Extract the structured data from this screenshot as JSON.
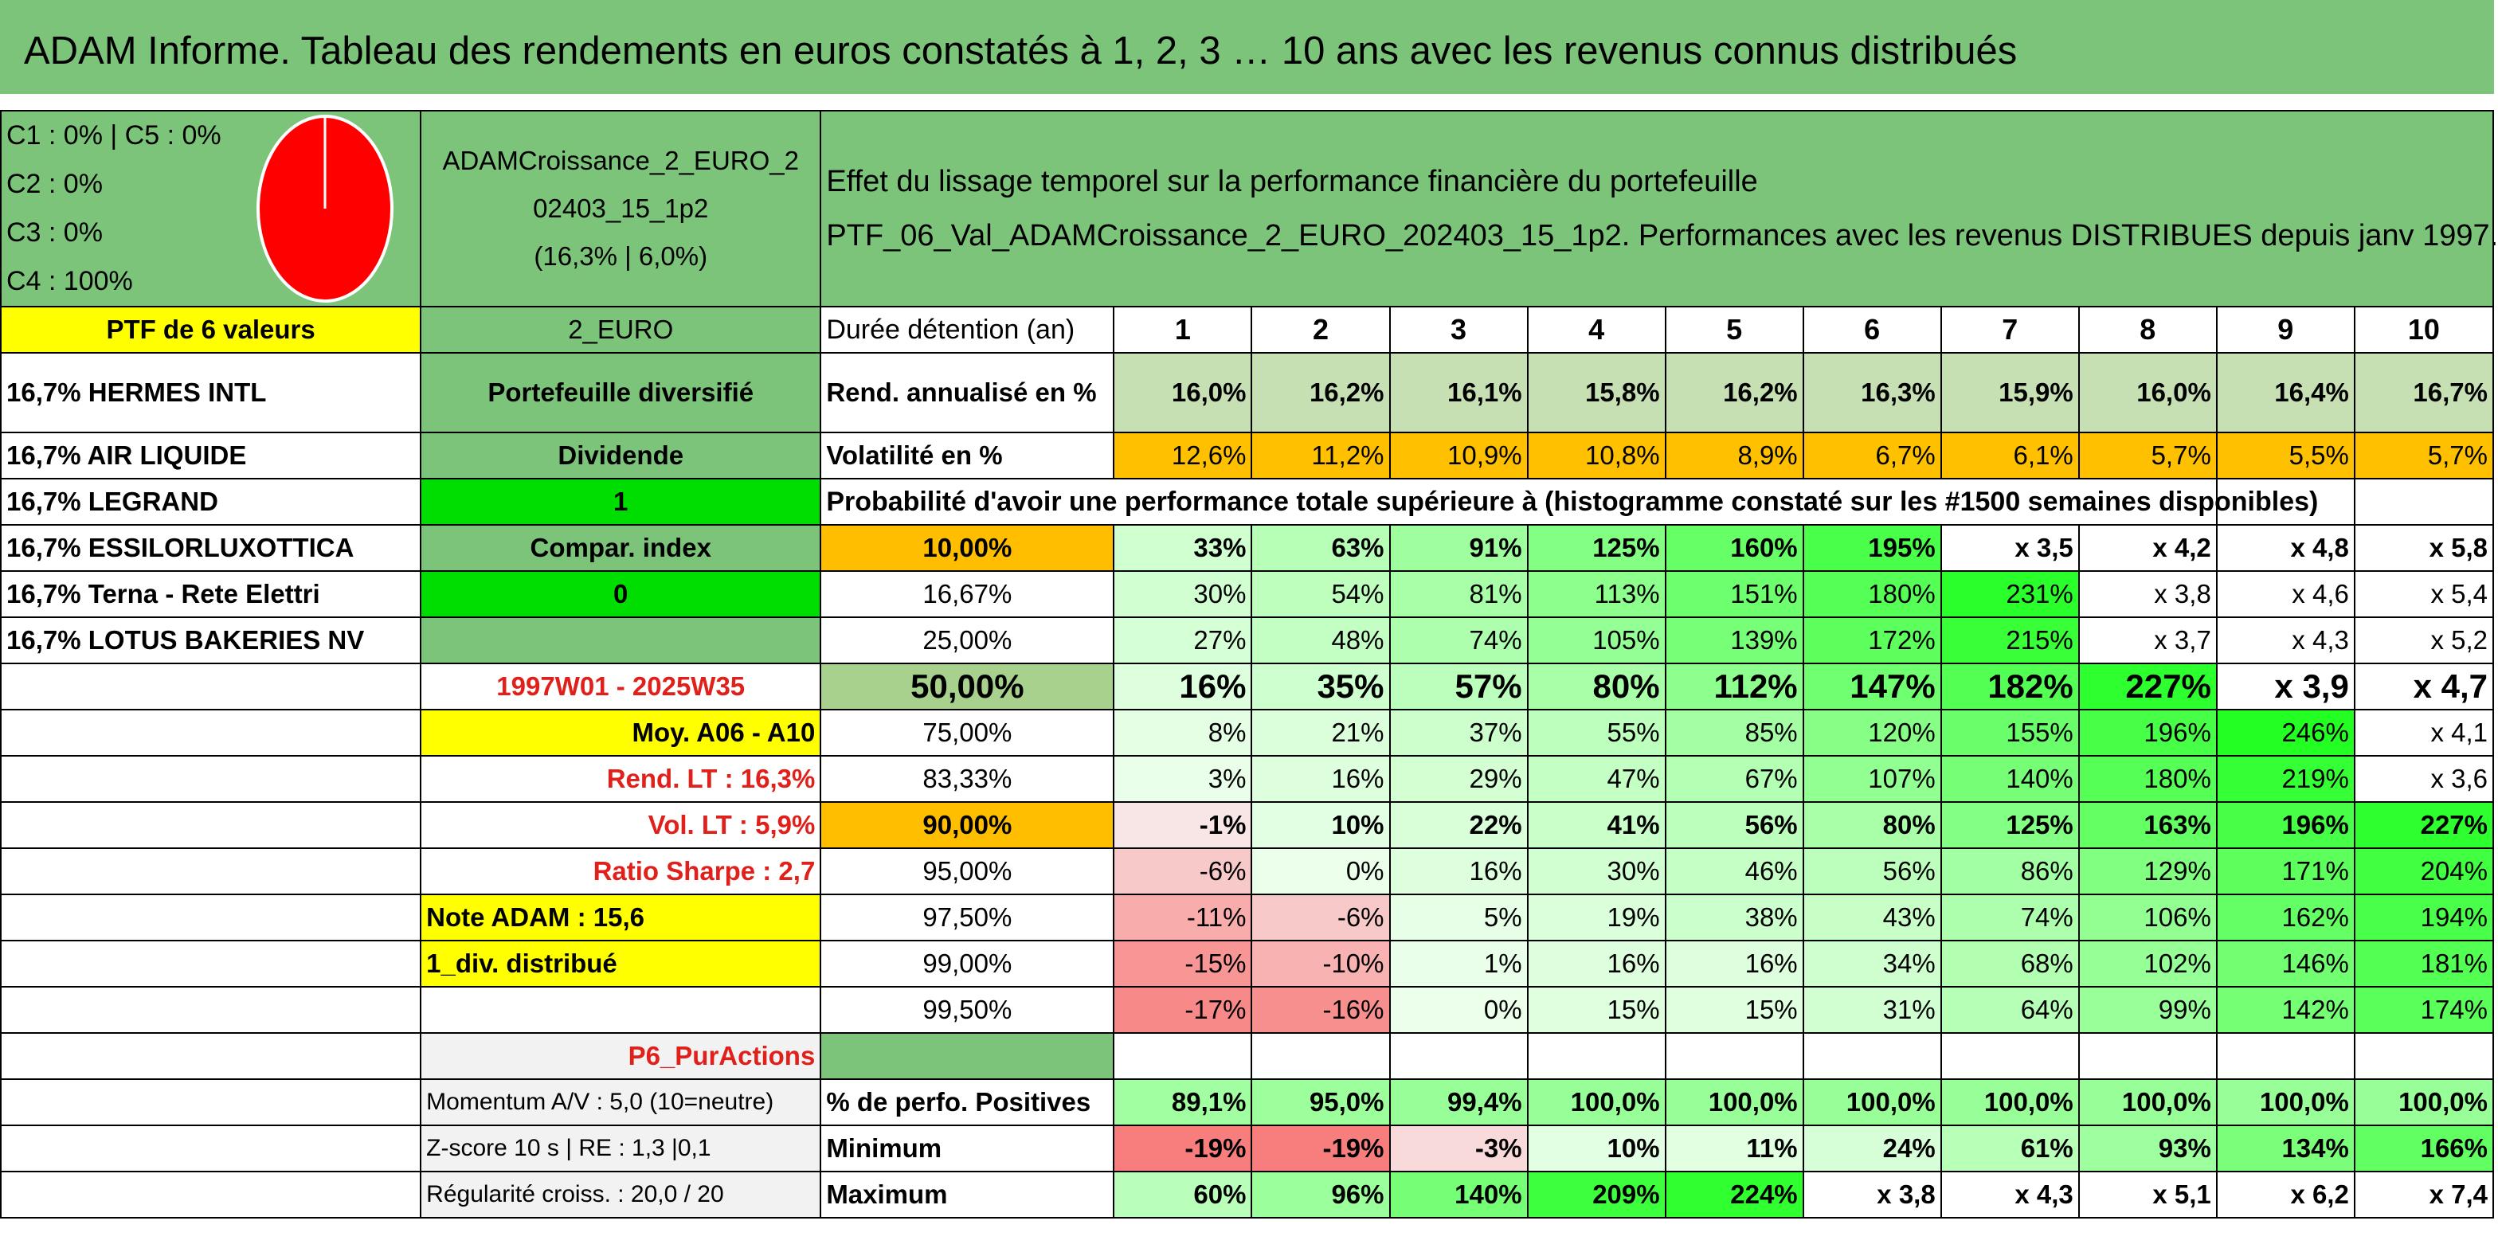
{
  "title": "ADAM Informe. Tableau des rendements en euros constatés à 1, 2, 3 … 10 ans avec les revenus connus distribués",
  "classes": [
    "C1 : 0% | C5 : 0%",
    "C2 : 0%",
    "C3 : 0%",
    "C4 : 100%"
  ],
  "fund": [
    "ADAMCroissance_2_EURO_2",
    "02403_15_1p2",
    "(16,3% | 6,0%)"
  ],
  "effect": [
    "Effet du lissage temporel sur la performance financière du portefeuille",
    "PTF_06_Val_ADAMCroissance_2_EURO_202403_15_1p2. Performances avec les revenus DISTRIBUES depuis janv 1997."
  ],
  "ptf_label": "PTF de 6 valeurs",
  "currency": "2_EURO",
  "holdings": [
    "16,7% HERMES INTL",
    "16,7% AIR LIQUIDE",
    "16,7% LEGRAND",
    "16,7% ESSILORLUXOTTICA",
    "16,7% Terna - Rete Elettri",
    "16,7% LOTUS BAKERIES NV"
  ],
  "side": [
    "Portefeuille diversifié",
    "Dividende",
    "1",
    "Compar. index",
    "0"
  ],
  "period": "1997W01 - 2025W35",
  "moy": "Moy. A06 - A10",
  "rend_lt": "Rend. LT : 16,3%",
  "vol_lt": "Vol. LT : 5,9%",
  "sharpe": "Ratio Sharpe : 2,7",
  "note": "Note ADAM : 15,6",
  "div": "1_div. distribué",
  "p6": "P6_PurActions",
  "momentum": "Momentum A/V : 5,0 (10=neutre)",
  "zscore": "Z-score 10 s | RE : 1,3 |0,1",
  "regularite": "Régularité croiss. : 20,0 / 20",
  "years_label": "Durée détention (an)",
  "years": [
    "1",
    "2",
    "3",
    "4",
    "5",
    "6",
    "7",
    "8",
    "9",
    "10"
  ],
  "rend_label": "Rend. annualisé en %",
  "rend": [
    "16,0%",
    "16,2%",
    "16,1%",
    "15,8%",
    "16,2%",
    "16,3%",
    "15,9%",
    "16,0%",
    "16,4%",
    "16,7%"
  ],
  "vol_label": "Volatilité en %",
  "vol": [
    "12,6%",
    "11,2%",
    "10,9%",
    "10,8%",
    "8,9%",
    "6,7%",
    "6,1%",
    "5,7%",
    "5,5%",
    "5,7%"
  ],
  "prob_label": "Probabilité d'avoir une performance totale supérieure à (histogramme constaté sur les #1500 semaines disponibles)",
  "pct_rows": [
    {
      "p": "10,00%",
      "v": [
        "33%",
        "63%",
        "91%",
        "125%",
        "160%",
        "195%",
        "x 3,5",
        "x 4,2",
        "x 4,8",
        "x 5,8"
      ]
    },
    {
      "p": "16,67%",
      "v": [
        "30%",
        "54%",
        "81%",
        "113%",
        "151%",
        "180%",
        "231%",
        "x 3,8",
        "x 4,6",
        "x 5,4"
      ]
    },
    {
      "p": "25,00%",
      "v": [
        "27%",
        "48%",
        "74%",
        "105%",
        "139%",
        "172%",
        "215%",
        "x 3,7",
        "x 4,3",
        "x 5,2"
      ]
    },
    {
      "p": "50,00%",
      "v": [
        "16%",
        "35%",
        "57%",
        "80%",
        "112%",
        "147%",
        "182%",
        "227%",
        "x 3,9",
        "x 4,7"
      ]
    },
    {
      "p": "75,00%",
      "v": [
        "8%",
        "21%",
        "37%",
        "55%",
        "85%",
        "120%",
        "155%",
        "196%",
        "246%",
        "x 4,1"
      ]
    },
    {
      "p": "83,33%",
      "v": [
        "3%",
        "16%",
        "29%",
        "47%",
        "67%",
        "107%",
        "140%",
        "180%",
        "219%",
        "x 3,6"
      ]
    },
    {
      "p": "90,00%",
      "v": [
        "-1%",
        "10%",
        "22%",
        "41%",
        "56%",
        "80%",
        "125%",
        "163%",
        "196%",
        "227%"
      ]
    },
    {
      "p": "95,00%",
      "v": [
        "-6%",
        "0%",
        "16%",
        "30%",
        "46%",
        "56%",
        "86%",
        "129%",
        "171%",
        "204%"
      ]
    },
    {
      "p": "97,50%",
      "v": [
        "-11%",
        "-6%",
        "5%",
        "19%",
        "38%",
        "43%",
        "74%",
        "106%",
        "162%",
        "194%"
      ]
    },
    {
      "p": "99,00%",
      "v": [
        "-15%",
        "-10%",
        "1%",
        "16%",
        "16%",
        "34%",
        "68%",
        "102%",
        "146%",
        "181%"
      ]
    },
    {
      "p": "99,50%",
      "v": [
        "-17%",
        "-16%",
        "0%",
        "15%",
        "15%",
        "31%",
        "64%",
        "99%",
        "142%",
        "174%"
      ]
    }
  ],
  "pos_label": "% de perfo. Positives",
  "pos": [
    "89,1%",
    "95,0%",
    "99,4%",
    "100,0%",
    "100,0%",
    "100,0%",
    "100,0%",
    "100,0%",
    "100,0%",
    "100,0%"
  ],
  "min_label": "Minimum",
  "min": [
    "-19%",
    "-19%",
    "-3%",
    "10%",
    "11%",
    "24%",
    "61%",
    "93%",
    "134%",
    "166%"
  ],
  "max_label": "Maximum",
  "max": [
    "60%",
    "96%",
    "140%",
    "209%",
    "224%",
    "x 3,8",
    "x 4,3",
    "x 5,1",
    "x 6,2",
    "x 7,4"
  ],
  "colors": {
    "green": "#7cc47a",
    "yellow": "#ffff00",
    "orange": "#ffc000",
    "lime": "#00dd00",
    "red": "#ff0000"
  }
}
